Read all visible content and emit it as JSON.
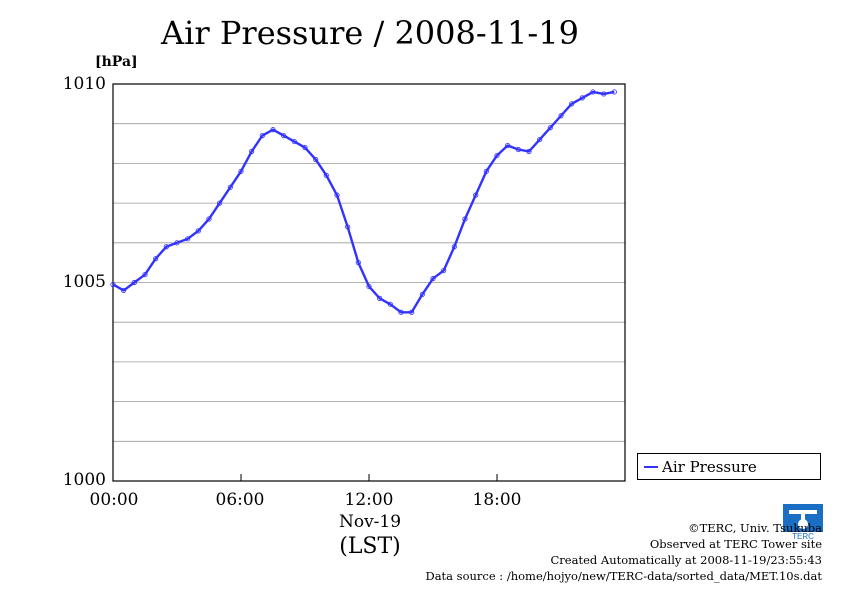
{
  "chart_data": {
    "type": "line",
    "title": "Air Pressure / 2008-11-19",
    "ylabel": "[hPa]",
    "ylim": [
      1000,
      1010
    ],
    "yticks": [
      "1000",
      "1005",
      "1010"
    ],
    "xticks": [
      "00:00",
      "06:00",
      "12:00",
      "18:00"
    ],
    "xlim_hours": [
      0,
      24
    ],
    "xdate": "Nov-19",
    "xlabel": "(LST)",
    "legend_position": "bottom-right outside",
    "grid": true,
    "series": [
      {
        "name": "Air Pressure",
        "color": "#3333ff",
        "x_hours": [
          0,
          0.5,
          1,
          1.5,
          2,
          2.5,
          3,
          3.5,
          4,
          4.5,
          5,
          5.5,
          6,
          6.5,
          7,
          7.5,
          8,
          8.5,
          9,
          9.5,
          10,
          10.5,
          11,
          11.5,
          12,
          12.5,
          13,
          13.5,
          14,
          14.5,
          15,
          15.5,
          16,
          16.5,
          17,
          17.5,
          18,
          18.5,
          19,
          19.5,
          20,
          20.5,
          21,
          21.5,
          22,
          22.5,
          23,
          23.5
        ],
        "values": [
          1004.95,
          1004.8,
          1005.0,
          1005.2,
          1005.6,
          1005.9,
          1006.0,
          1006.1,
          1006.3,
          1006.6,
          1007.0,
          1007.4,
          1007.8,
          1008.3,
          1008.7,
          1008.85,
          1008.7,
          1008.55,
          1008.4,
          1008.1,
          1007.7,
          1007.2,
          1006.4,
          1005.5,
          1004.9,
          1004.6,
          1004.45,
          1004.25,
          1004.25,
          1004.7,
          1005.1,
          1005.3,
          1005.9,
          1006.6,
          1007.2,
          1007.8,
          1008.2,
          1008.45,
          1008.35,
          1008.3,
          1008.6,
          1008.9,
          1009.2,
          1009.5,
          1009.65,
          1009.8,
          1009.75,
          1009.8
        ]
      }
    ]
  },
  "credits": {
    "line1": "©TERC, Univ. Tsukuba",
    "line2": "Observed at TERC Tower site",
    "line3": "Created Automatically at 2008-11-19/23:55:43",
    "line4": "Data source : /home/hojyo/new/TERC-data/sorted_data/MET.10s.dat"
  },
  "logo": {
    "text": "TERC",
    "color": "#1a6fc4"
  }
}
